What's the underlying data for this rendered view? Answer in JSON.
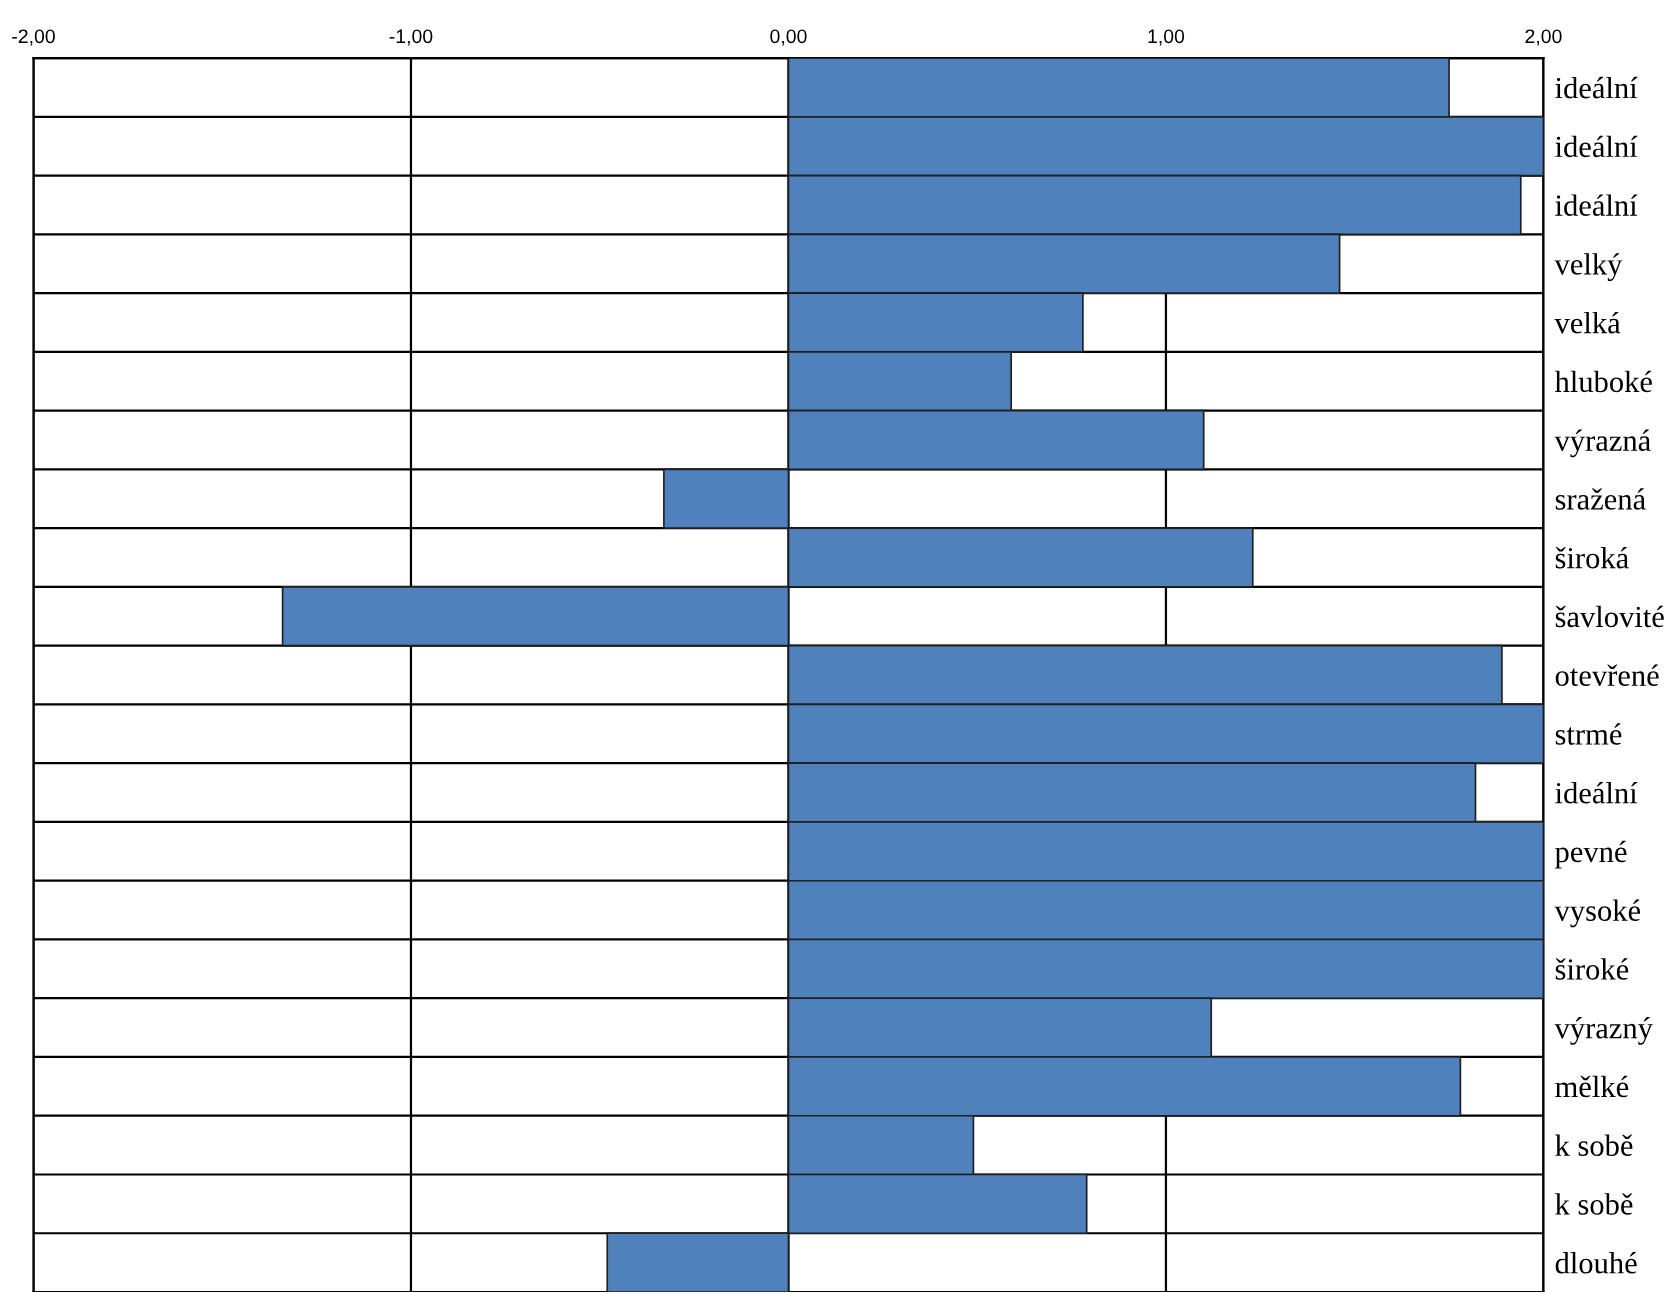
{
  "chart_data": {
    "type": "bar",
    "orientation": "horizontal",
    "categories": [
      "ideální",
      "ideální",
      "ideální",
      "velký",
      "velká",
      "hluboké",
      "výrazná",
      "sražená",
      "široká",
      "šavlovité",
      "otevřené",
      "strmé",
      "ideální",
      "pevné",
      "vysoké",
      "široké",
      "výrazný",
      "mělké",
      "k sobě",
      "k sobě",
      "dlouhé"
    ],
    "values": [
      1.75,
      2.0,
      1.94,
      1.46,
      0.78,
      0.59,
      1.1,
      -0.33,
      1.23,
      -1.34,
      1.89,
      2.0,
      1.82,
      2.0,
      2.0,
      2.0,
      1.12,
      1.78,
      0.49,
      0.79,
      -0.48
    ],
    "color": "#4f81bd",
    "xlim": [
      -2,
      2
    ],
    "xticks": [
      {
        "value": -2,
        "label": "-2,00"
      },
      {
        "value": -1,
        "label": "-1,00"
      },
      {
        "value": 0,
        "label": "0,00"
      },
      {
        "value": 1,
        "label": "1,00"
      },
      {
        "value": 2,
        "label": "2,00"
      }
    ],
    "grid": true
  }
}
